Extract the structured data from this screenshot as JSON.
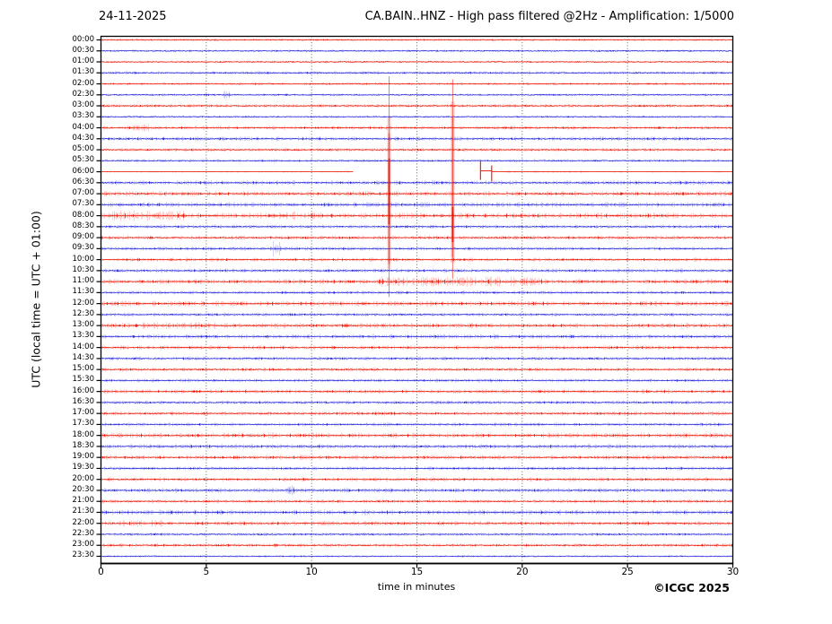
{
  "header": {
    "date": "24-11-2025",
    "title": "CA.BAIN..HNZ - High pass filtered @2Hz - Amplification: 1/5000"
  },
  "axes": {
    "y_label": "UTC (local time = UTC + 01:00)",
    "x_label": "time in minutes"
  },
  "footer": {
    "copyright": "©ICGC 2025"
  },
  "chart_data": {
    "type": "line",
    "variant": "helicorder",
    "station": "CA.BAIN..HNZ",
    "filter": "High pass filtered @2Hz",
    "amplification": "1/5000",
    "x_range_minutes": [
      0,
      30
    ],
    "x_ticks": [
      0,
      5,
      10,
      15,
      20,
      25,
      30
    ],
    "grid_minutes": [
      5,
      10,
      15,
      20,
      25
    ],
    "minutes_per_row": 30,
    "colors": {
      "r": "#ee1100",
      "b": "#2222dd",
      "grid": "#444444",
      "axis": "#000000",
      "background": "#ffffff"
    },
    "rows": [
      {
        "label": "00:00",
        "color": "r",
        "amp": 0.3
      },
      {
        "label": "00:30",
        "color": "b",
        "amp": 0.35
      },
      {
        "label": "01:00",
        "color": "r",
        "amp": 0.3
      },
      {
        "label": "01:30",
        "color": "b",
        "amp": 0.45
      },
      {
        "label": "02:00",
        "color": "r",
        "amp": 0.35
      },
      {
        "label": "02:30",
        "color": "b",
        "amp": 0.35
      },
      {
        "label": "03:00",
        "color": "r",
        "amp": 0.45
      },
      {
        "label": "03:30",
        "color": "b",
        "amp": 0.32
      },
      {
        "label": "04:00",
        "color": "r",
        "amp": 0.5
      },
      {
        "label": "04:30",
        "color": "b",
        "amp": 0.55
      },
      {
        "label": "05:00",
        "color": "r",
        "amp": 0.45
      },
      {
        "label": "05:30",
        "color": "b",
        "amp": 0.38
      },
      {
        "label": "06:00",
        "color": "r",
        "amp": 0.1
      },
      {
        "label": "06:30",
        "color": "b",
        "amp": 0.6
      },
      {
        "label": "07:00",
        "color": "r",
        "amp": 0.65
      },
      {
        "label": "07:30",
        "color": "b",
        "amp": 0.65
      },
      {
        "label": "08:00",
        "color": "r",
        "amp": 0.75
      },
      {
        "label": "08:30",
        "color": "b",
        "amp": 0.5
      },
      {
        "label": "09:00",
        "color": "r",
        "amp": 0.55
      },
      {
        "label": "09:30",
        "color": "b",
        "amp": 0.5
      },
      {
        "label": "10:00",
        "color": "r",
        "amp": 0.5
      },
      {
        "label": "10:30",
        "color": "b",
        "amp": 0.55
      },
      {
        "label": "11:00",
        "color": "r",
        "amp": 0.65
      },
      {
        "label": "11:30",
        "color": "b",
        "amp": 0.5
      },
      {
        "label": "12:00",
        "color": "r",
        "amp": 0.7
      },
      {
        "label": "12:30",
        "color": "b",
        "amp": 0.5
      },
      {
        "label": "13:00",
        "color": "r",
        "amp": 0.65
      },
      {
        "label": "13:30",
        "color": "b",
        "amp": 0.6
      },
      {
        "label": "14:00",
        "color": "r",
        "amp": 0.55
      },
      {
        "label": "14:30",
        "color": "b",
        "amp": 0.5
      },
      {
        "label": "15:00",
        "color": "r",
        "amp": 0.5
      },
      {
        "label": "15:30",
        "color": "b",
        "amp": 0.5
      },
      {
        "label": "16:00",
        "color": "r",
        "amp": 0.55
      },
      {
        "label": "16:30",
        "color": "b",
        "amp": 0.5
      },
      {
        "label": "17:00",
        "color": "r",
        "amp": 0.55
      },
      {
        "label": "17:30",
        "color": "b",
        "amp": 0.5
      },
      {
        "label": "18:00",
        "color": "r",
        "amp": 0.7
      },
      {
        "label": "18:30",
        "color": "b",
        "amp": 0.6
      },
      {
        "label": "19:00",
        "color": "r",
        "amp": 0.6
      },
      {
        "label": "19:30",
        "color": "b",
        "amp": 0.5
      },
      {
        "label": "20:00",
        "color": "r",
        "amp": 0.55
      },
      {
        "label": "20:30",
        "color": "b",
        "amp": 0.6
      },
      {
        "label": "21:00",
        "color": "r",
        "amp": 0.5
      },
      {
        "label": "21:30",
        "color": "b",
        "amp": 0.68
      },
      {
        "label": "22:00",
        "color": "r",
        "amp": 0.6
      },
      {
        "label": "22:30",
        "color": "b",
        "amp": 0.45
      },
      {
        "label": "23:00",
        "color": "r",
        "amp": 0.5
      },
      {
        "label": "23:30",
        "color": "b",
        "amp": 0.28
      }
    ],
    "events": [
      {
        "x_min": 13.68,
        "color": "r",
        "span_rows": [
          3.3,
          23.4
        ],
        "halo_rows": [
          7.0,
          20.9
        ],
        "core_rows": [
          10.8,
          16.8
        ]
      },
      {
        "x_min": 16.7,
        "color": "r",
        "span_rows": [
          3.6,
          21.7
        ],
        "halo_rows": [
          5.6,
          20.3
        ],
        "core_rows": [
          15.2,
          18.4
        ]
      }
    ],
    "bursts": [
      {
        "row": 5,
        "from": 5.8,
        "to": 6.15,
        "gain": 3.0
      },
      {
        "row": 8,
        "from": 1.2,
        "to": 2.3,
        "gain": 2.0
      },
      {
        "row": 12,
        "from": 19.3,
        "to": 23.0,
        "gain": 2.0
      },
      {
        "row": 16,
        "from": 0.3,
        "to": 4.0,
        "gain": 1.6
      },
      {
        "row": 16,
        "from": 8.0,
        "to": 11.0,
        "gain": 1.3
      },
      {
        "row": 19,
        "from": 8.05,
        "to": 8.6,
        "gain": 4.0
      },
      {
        "row": 22,
        "from": 13.2,
        "to": 21.0,
        "gain": 1.8
      },
      {
        "row": 26,
        "from": 2.0,
        "to": 6.0,
        "gain": 1.3
      },
      {
        "row": 41,
        "from": 8.8,
        "to": 9.4,
        "gain": 2.2
      },
      {
        "row": 44,
        "from": 1.0,
        "to": 3.0,
        "gain": 1.5
      }
    ],
    "dead_channel": {
      "row": 12,
      "segments": [
        {
          "from": 0,
          "to": 11.97,
          "style": "flat"
        },
        {
          "from": 11.97,
          "to": 18.02,
          "style": "gap"
        },
        {
          "from": 18.02,
          "to": 18.55,
          "style": "pulse"
        },
        {
          "from": 18.55,
          "to": 30,
          "style": "flat"
        }
      ]
    }
  }
}
